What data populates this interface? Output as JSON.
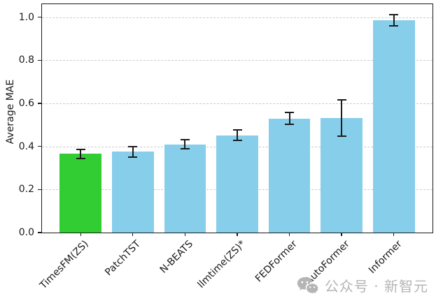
{
  "chart_data": {
    "type": "bar",
    "title": "",
    "xlabel": "",
    "ylabel": "Average MAE",
    "ylim": [
      0,
      1.06
    ],
    "yticks": [
      0.0,
      0.2,
      0.4,
      0.6,
      0.8,
      1.0
    ],
    "grid": "horizontal-dashed",
    "legend_position": "none",
    "categories": [
      "TimesFM(ZS)",
      "PatchTST",
      "N-BEATS",
      "llmtime(ZS)*",
      "FEDFormer",
      "AutoFormer",
      "Informer"
    ],
    "values": [
      0.365,
      0.375,
      0.41,
      0.452,
      0.53,
      0.532,
      0.985
    ],
    "errors": [
      0.022,
      0.024,
      0.021,
      0.024,
      0.027,
      0.085,
      0.025
    ],
    "bar_colors": [
      "#32cd32",
      "#87ceeb",
      "#87ceeb",
      "#87ceeb",
      "#87ceeb",
      "#87ceeb",
      "#87ceeb"
    ],
    "highlight_color": "#32cd32",
    "default_color": "#87ceeb",
    "errorbar_color": "#1c1c1c",
    "gridline_color": "#cccccc",
    "bar_width_ratio": 0.8
  },
  "watermark": {
    "icon": "wechat-icon",
    "text": "公众号 · 新智元",
    "color": "#b5b5b5"
  }
}
